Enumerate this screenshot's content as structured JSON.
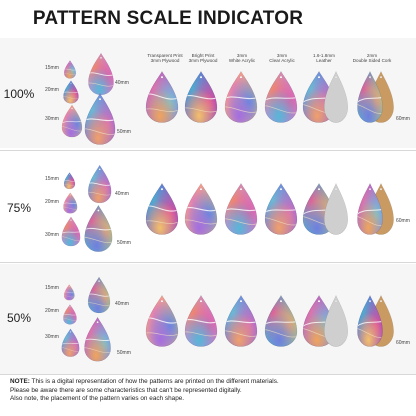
{
  "title": "PATTERN SCALE INDICATOR",
  "columns": [
    {
      "line1": "Transparent Print",
      "line2": "3mm Plywood"
    },
    {
      "line1": "Bright Print",
      "line2": "3mm Plywood"
    },
    {
      "line1": "3mm",
      "line2": "White Acrylic"
    },
    {
      "line1": "3mm",
      "line2": "Clear Acrylic"
    },
    {
      "line1": "1.6-1.8mm",
      "line2": "Leather"
    },
    {
      "line1": "2mm",
      "line2": "Double Sided Cork"
    }
  ],
  "rows": [
    {
      "scale": "100%",
      "sizes": [
        "15mm",
        "20mm",
        "30mm",
        "40mm",
        "50mm"
      ],
      "size60": "60mm"
    },
    {
      "scale": "75%",
      "sizes": [
        "15mm",
        "20mm",
        "30mm",
        "40mm",
        "50mm"
      ],
      "size60": "60mm"
    },
    {
      "scale": "50%",
      "sizes": [
        "15mm",
        "20mm",
        "30mm",
        "40mm",
        "50mm"
      ],
      "size60": "60mm"
    }
  ],
  "note": {
    "label": "NOTE:",
    "line1": " This is a digital representation of how the patterns are printed on the different materials.",
    "line2": "Please be aware there are some characteristics that can't be represented digitally.",
    "line3": "Also note, the placement of the pattern varies on each shape."
  }
}
